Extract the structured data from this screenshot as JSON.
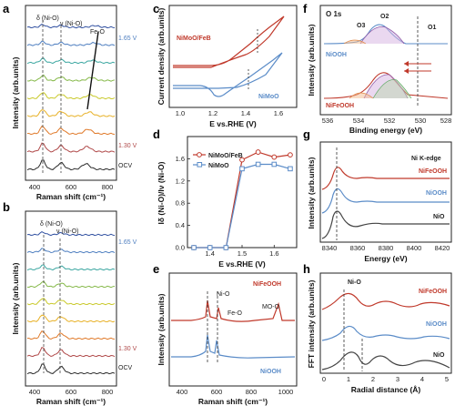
{
  "panels": {
    "a": {
      "letter": "a",
      "xlabel": "Raman shift (cm⁻¹)",
      "ylabel": "Intensity (arb.units)",
      "xticks": [
        "400",
        "600",
        "800"
      ],
      "peaks": {
        "delta": "δ (Ni-O)",
        "nu": "ν (Ni-O)",
        "feo": "Fe-O"
      },
      "potentials": {
        "top": "1.65 V",
        "mid": "1.30 V",
        "bottom": "OCV"
      }
    },
    "b": {
      "letter": "b",
      "xlabel": "Raman shift (cm⁻¹)",
      "ylabel": "Intensity (arb.units)",
      "xticks": [
        "400",
        "600",
        "800"
      ],
      "peaks": {
        "delta": "δ (Ni-O)",
        "nu": "ν (Ni-O)"
      },
      "potentials": {
        "top": "1.65 V",
        "mid": "1.30 V",
        "bottom": "OCV"
      }
    },
    "c": {
      "letter": "c",
      "xlabel": "E vs.RHE (V)",
      "ylabel": "Current density (arb.units)",
      "xticks": [
        "1.0",
        "1.2",
        "1.4",
        "1.6"
      ],
      "legend": {
        "s1": "NiMoO/FeB",
        "s2": "NiMoO"
      }
    },
    "d": {
      "letter": "d",
      "xlabel": "E vs.RHE (V)",
      "ylabel": "Iδ (Ni-O)/Iν (Ni-O)",
      "xticks": [
        "1.4",
        "1.5",
        "1.6"
      ],
      "yticks": [
        "0.0",
        "0.4",
        "0.8",
        "1.2",
        "1.6"
      ],
      "legend": {
        "s1": "NiMoO/FeB",
        "s2": "NiMoO"
      }
    },
    "e": {
      "letter": "e",
      "xlabel": "Raman shift (cm⁻¹)",
      "ylabel": "Intensity (arb.units)",
      "xticks": [
        "400",
        "600",
        "800",
        "1000"
      ],
      "labels": {
        "s1": "NiFeOOH",
        "s2": "NiOOH",
        "nio": "Ni-O",
        "feo": "Fe-O",
        "moo": "MO-O"
      }
    },
    "f": {
      "letter": "f",
      "xlabel": "Binding energy (eV)",
      "ylabel": "Intensity (arb.units)",
      "xticks": [
        "536",
        "534",
        "532",
        "530",
        "528"
      ],
      "labels": {
        "title": "O 1s",
        "o1": "O1",
        "o2": "O2",
        "o3": "O3",
        "s1": "NiOOH",
        "s2": "NiFeOOH"
      }
    },
    "g": {
      "letter": "g",
      "xlabel": "Energy (eV)",
      "ylabel": "Intensity (arb.units)",
      "xticks": [
        "8340",
        "8360",
        "8380",
        "8400",
        "8420"
      ],
      "labels": {
        "title": "Ni K-edge",
        "s1": "NiFeOOH",
        "s2": "NiOOH",
        "s3": "NiO"
      }
    },
    "h": {
      "letter": "h",
      "xlabel": "Radial distance (Å)",
      "ylabel": "FFT intensity (arb.units)",
      "xticks": [
        "0",
        "1",
        "2",
        "3",
        "4",
        "5"
      ],
      "labels": {
        "nio": "Ni-O",
        "s1": "NiFeOOH",
        "s2": "NiOOH",
        "s3": "NiO"
      }
    }
  },
  "colors": {
    "red": "#c0392b",
    "blue": "#5b8cc8",
    "dark": "#333333",
    "spectrum": [
      "#2b2b2b",
      "#b04a4a",
      "#e07a2a",
      "#e8b22a",
      "#c9c92a",
      "#86b94a",
      "#3aa6a0",
      "#4f7fc0",
      "#2f4fa0"
    ]
  },
  "chart_data": [
    {
      "type": "line",
      "panel": "d",
      "x": [
        1.35,
        1.4,
        1.45,
        1.5,
        1.55,
        1.6,
        1.65
      ],
      "series": [
        {
          "name": "NiMoO/FeB",
          "values": [
            0,
            0,
            0,
            1.58,
            1.72,
            1.63,
            1.67
          ]
        },
        {
          "name": "NiMoO",
          "values": [
            0,
            0,
            0,
            1.42,
            1.5,
            1.5,
            1.42
          ]
        }
      ],
      "xlabel": "E vs.RHE (V)",
      "ylabel": "Iδ (Ni-O)/Iν (Ni-O)",
      "ylim": [
        0,
        2.0
      ]
    }
  ]
}
